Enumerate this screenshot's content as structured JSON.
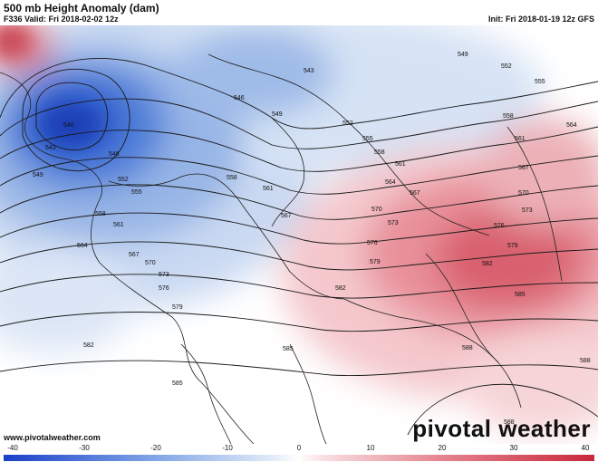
{
  "header": {
    "title": "500 mb Height Anomaly (dam)",
    "valid": "F336 Valid: Fri 2018-02-02 12z",
    "init": "Init: Fri 2018-01-19 12z GFS"
  },
  "footer": {
    "url": "www.pivotalweather.com",
    "logo": "pivotal weather"
  },
  "colorbar": {
    "ticks": [
      "-40",
      "-30",
      "-20",
      "-10",
      "0",
      "10",
      "20",
      "30",
      "40"
    ],
    "min": -40,
    "max": 40,
    "negative_color": "#1a3fc7",
    "positive_color": "#c8283a",
    "neutral_color": "#ffffff"
  },
  "map": {
    "contour_labels": [
      "540",
      "543",
      "546",
      "549",
      "552",
      "555",
      "558",
      "561",
      "564",
      "567",
      "570",
      "573",
      "576",
      "579",
      "582",
      "585",
      "588"
    ]
  }
}
